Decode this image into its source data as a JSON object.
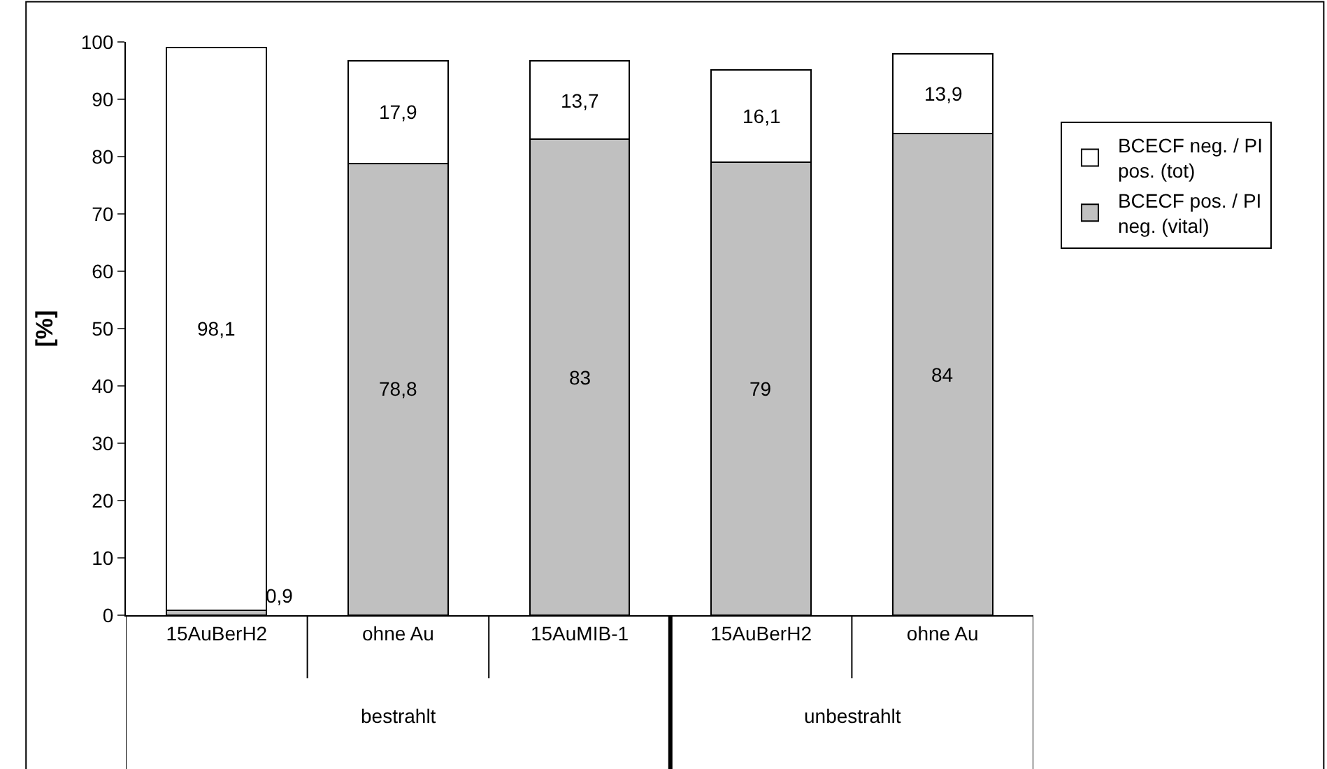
{
  "chart_data": {
    "type": "bar",
    "stacked": true,
    "ylabel": "[%]",
    "categories": [
      "15AuBerH2",
      "ohne Au",
      "15AuMIB-1",
      "15AuBerH2",
      "ohne Au"
    ],
    "series": [
      {
        "name": "BCECF pos. / PI neg. (vital)",
        "color": "#c0c0c0",
        "values": [
          0.9,
          78.8,
          83,
          79,
          84
        ],
        "value_labels": [
          "0,9",
          "78,8",
          "83",
          "79",
          "84"
        ]
      },
      {
        "name": "BCECF neg. / PI pos. (tot)",
        "color": "#ffffff",
        "values": [
          98.1,
          17.9,
          13.7,
          16.1,
          13.9
        ],
        "value_labels": [
          "98,1",
          "17,9",
          "13,7",
          "16,1",
          "13,9"
        ]
      }
    ],
    "ylim": [
      0,
      100
    ],
    "yticks": [
      0,
      10,
      20,
      30,
      40,
      50,
      60,
      70,
      80,
      90,
      100
    ],
    "legend": "right",
    "annotations": [
      "bestrahlt",
      "unbestrahlt"
    ]
  }
}
